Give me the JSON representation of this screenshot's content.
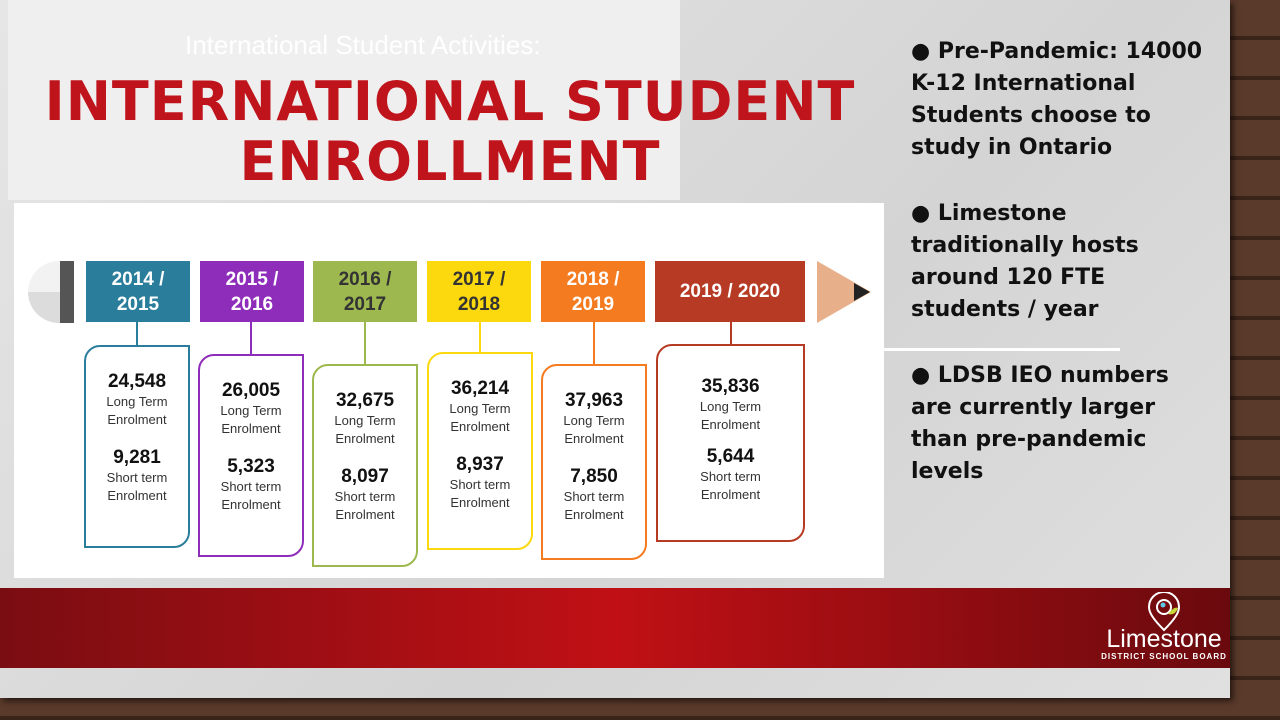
{
  "slide": {
    "subtitle_faint": "International Student Activities:",
    "title_line1": "INTERNATIONAL STUDENT",
    "title_line2": "ENROLLMENT"
  },
  "timeline": [
    {
      "year": "2014 / 2015",
      "color": "#2a7e9b",
      "long": "24,548",
      "short": "9,281"
    },
    {
      "year": "2015 / 2016",
      "color": "#8e2dba",
      "long": "26,005",
      "short": "5,323"
    },
    {
      "year": "2016 / 2017",
      "color": "#9cb84f",
      "long": "32,675",
      "short": "8,097"
    },
    {
      "year": "2017 / 2018",
      "color": "#fcd90f",
      "long": "36,214",
      "short": "8,937"
    },
    {
      "year": "2018 / 2019",
      "color": "#f47b20",
      "long": "37,963",
      "short": "7,850"
    },
    {
      "year": "2019 / 2020",
      "color": "#b63a24",
      "long": "35,836",
      "short": "5,644"
    }
  ],
  "labels": {
    "long1": "Long Term",
    "long2": "Enrolment",
    "short1": "Short term",
    "short2": "Enrolment"
  },
  "bullets": [
    "● Pre-Pandemic: 14000 K-12 International Students choose to study in Ontario",
    "● Limestone traditionally hosts around 120 FTE students / year",
    "● LDSB IEO numbers are currently larger than pre-pandemic levels"
  ],
  "logo": {
    "name": "Limestone",
    "sub": "DISTRICT SCHOOL BOARD"
  }
}
